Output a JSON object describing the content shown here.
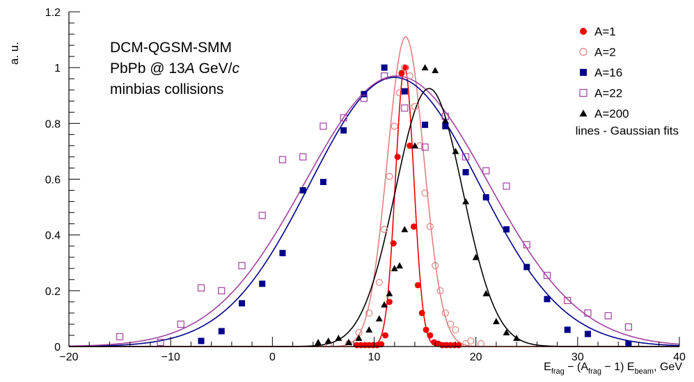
{
  "chart_data": {
    "type": "scatter",
    "title": "",
    "annotation": {
      "line1": "DCM-QGSM-SMM",
      "line2_pre": "PbPb @ 13",
      "line2_italic_a": "A",
      "line2_mid": " GeV/",
      "line2_italic_c": "c",
      "line3": "minbias collisions"
    },
    "ylabel": "a. u.",
    "xlabel": {
      "e": "E",
      "frag_sub": "frag",
      "dash": " − (A",
      "frag_sub2": "frag",
      "mid": " − 1) E",
      "beam_sub": "beam",
      "unit": ", GeV"
    },
    "xlim": [
      -20,
      40
    ],
    "ylim": [
      0,
      1.2
    ],
    "xticks": [
      -20,
      -10,
      0,
      10,
      20,
      30,
      40
    ],
    "xtick_labels": [
      "−20",
      "−10",
      "0",
      "10",
      "20",
      "30",
      "40"
    ],
    "yticks": [
      0,
      0.2,
      0.4,
      0.6,
      0.8,
      1,
      1.2
    ],
    "ytick_labels": [
      "0",
      "0.2",
      "0.4",
      "0.6",
      "0.8",
      "1",
      "1.2"
    ],
    "legend_position": "top-right",
    "legend_note": "lines - Gaussian fits",
    "grid": false,
    "series": [
      {
        "name": "A=1",
        "marker": "circle-filled",
        "color": "#ee0000",
        "x": [
          8.3,
          8.7,
          9.1,
          9.5,
          9.9,
          10.3,
          10.7,
          11.1,
          11.5,
          11.9,
          12.3,
          12.7,
          13.1,
          13.5,
          13.9,
          14.3,
          14.7,
          15.1,
          15.5,
          15.9,
          16.3,
          16.7,
          17.1,
          17.5,
          17.9,
          18.3
        ],
        "y": [
          0.005,
          0.005,
          0.005,
          0.005,
          0.005,
          0.005,
          0.008,
          0.04,
          0.16,
          0.37,
          0.68,
          0.98,
          1.0,
          0.72,
          0.43,
          0.22,
          0.12,
          0.06,
          0.04,
          0.015,
          0.01,
          0.005,
          0.005,
          0.005,
          0.005,
          0.005
        ],
        "fit": {
          "mu": 13.0,
          "sigma": 0.9,
          "amp": 1.0
        }
      },
      {
        "name": "A=2",
        "marker": "circle-open",
        "color": "#e08080",
        "x": [
          5.5,
          7.5,
          8.5,
          9.5,
          10.5,
          11.0,
          11.5,
          12.0,
          12.5,
          13.0,
          13.5,
          14.0,
          14.5,
          15.0,
          15.5,
          16.0,
          16.5,
          17.0,
          17.5,
          18.0,
          19.0,
          19.5,
          20.5
        ],
        "y": [
          0.01,
          0.01,
          0.05,
          0.12,
          0.23,
          0.42,
          0.61,
          0.79,
          0.91,
          1.0,
          0.97,
          0.86,
          0.72,
          0.55,
          0.43,
          0.29,
          0.2,
          0.12,
          0.08,
          0.06,
          0.01,
          0.02,
          0.01
        ],
        "fit": {
          "mu": 13.1,
          "sigma": 1.8,
          "amp": 1.11
        }
      },
      {
        "name": "A=16",
        "marker": "square-filled",
        "color": "#00008b",
        "x": [
          -7,
          -5,
          -3,
          -1,
          1,
          3,
          5,
          7,
          9,
          11,
          13,
          15,
          17,
          19,
          21,
          23,
          25,
          27,
          29,
          31,
          35
        ],
        "y": [
          0.02,
          0.055,
          0.155,
          0.225,
          0.335,
          0.56,
          0.59,
          0.775,
          0.905,
          1.0,
          0.915,
          0.795,
          0.79,
          0.625,
          0.535,
          0.42,
          0.285,
          0.17,
          0.06,
          0.045,
          0.01
        ],
        "fit": {
          "mu": 12.0,
          "sigma": 8.3,
          "amp": 0.965
        }
      },
      {
        "name": "A=22",
        "marker": "square-open",
        "color": "#a040a0",
        "x": [
          -15,
          -11,
          -9,
          -7,
          -5,
          -3,
          -1,
          1,
          3,
          5,
          7,
          9,
          11,
          13,
          15,
          17,
          19,
          21,
          23,
          25,
          27,
          29,
          31,
          33,
          35
        ],
        "y": [
          0.035,
          0.015,
          0.08,
          0.21,
          0.2,
          0.29,
          0.47,
          0.67,
          0.68,
          0.79,
          0.82,
          0.89,
          0.97,
          0.855,
          0.715,
          0.825,
          0.68,
          0.63,
          0.575,
          0.365,
          0.255,
          0.165,
          0.12,
          0.11,
          0.07
        ],
        "fit": {
          "mu": 12.2,
          "sigma": 9.0,
          "amp": 0.97
        }
      },
      {
        "name": "A=200",
        "marker": "triangle-filled",
        "color": "#000000",
        "x": [
          4.5,
          5.5,
          6.5,
          7.5,
          8.5,
          9.5,
          10.5,
          11.0,
          11.5,
          12.0,
          12.5,
          13.0,
          14.0,
          15.0,
          16.0,
          17.0,
          18.0,
          19.0,
          20.0,
          21.0,
          22.0,
          23.0,
          24.0
        ],
        "y": [
          0.015,
          0.02,
          0.03,
          0.015,
          0.03,
          0.06,
          0.1,
          0.15,
          0.19,
          0.28,
          0.29,
          0.42,
          0.72,
          1.0,
          0.99,
          0.81,
          0.7,
          0.52,
          0.32,
          0.19,
          0.09,
          0.05,
          0.03
        ],
        "fit": {
          "mu": 15.4,
          "sigma": 3.3,
          "amp": 0.925
        }
      }
    ]
  }
}
